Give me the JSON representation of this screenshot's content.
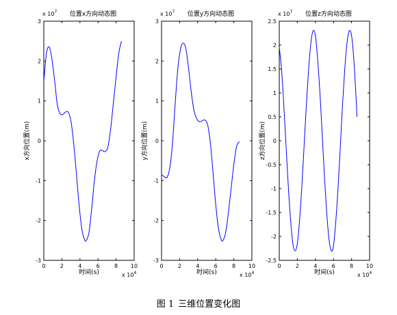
{
  "chart_data": [
    {
      "type": "line",
      "title": "位置x方向动态图",
      "xlabel": "时间(s)",
      "ylabel": "x方向位置(m)",
      "x_multiplier": "x 10",
      "x_multiplier_exp": "4",
      "y_multiplier": "x 10",
      "y_multiplier_exp": "7",
      "xlim": [
        0,
        10
      ],
      "ylim": [
        -3,
        3
      ],
      "xticks": [
        "0",
        "2",
        "4",
        "6",
        "8",
        "10"
      ],
      "yticks": [
        "3",
        "2",
        "1",
        "0",
        "-1",
        "-2",
        "-3"
      ],
      "grid": false,
      "line_color": "#0000ff",
      "series": [
        {
          "x": [
            0,
            0.3,
            0.6,
            0.9,
            1.2,
            1.5,
            1.8,
            2.1,
            2.4,
            2.7,
            3.0,
            3.3,
            3.6,
            3.9,
            4.2,
            4.5,
            4.7,
            5.0,
            5.3,
            5.6,
            5.9,
            6.2,
            6.5,
            6.8,
            7.1,
            7.4,
            7.7,
            8.0,
            8.3,
            8.6
          ],
          "y": [
            1.5,
            2.2,
            2.35,
            2.05,
            1.5,
            0.9,
            0.68,
            0.66,
            0.72,
            0.72,
            0.5,
            -0.05,
            -0.8,
            -1.6,
            -2.2,
            -2.48,
            -2.5,
            -2.3,
            -1.7,
            -1.0,
            -0.5,
            -0.25,
            -0.25,
            -0.27,
            -0.15,
            0.3,
            0.95,
            1.6,
            2.2,
            2.5
          ]
        }
      ]
    },
    {
      "type": "line",
      "title": "位置y方向动态图",
      "xlabel": "时间(s)",
      "ylabel": "y方向位置(m)",
      "x_multiplier": "x 10",
      "x_multiplier_exp": "4",
      "y_multiplier": "x 10",
      "y_multiplier_exp": "7",
      "xlim": [
        0,
        10
      ],
      "ylim": [
        -3,
        3
      ],
      "xticks": [
        "0",
        "2",
        "4",
        "6",
        "8",
        "10"
      ],
      "yticks": [
        "3",
        "2",
        "1",
        "0",
        "-1",
        "-2",
        "-3"
      ],
      "grid": false,
      "line_color": "#0000ff",
      "series": [
        {
          "x": [
            0,
            0.3,
            0.6,
            0.9,
            1.2,
            1.5,
            1.8,
            2.1,
            2.4,
            2.7,
            3.0,
            3.3,
            3.6,
            3.9,
            4.2,
            4.5,
            4.8,
            5.1,
            5.4,
            5.7,
            6.0,
            6.3,
            6.6,
            6.8,
            7.1,
            7.4,
            7.7,
            8.0,
            8.3,
            8.6
          ],
          "y": [
            -0.85,
            -0.9,
            -0.92,
            -0.7,
            -0.1,
            0.9,
            1.8,
            2.3,
            2.45,
            2.3,
            1.8,
            1.2,
            0.75,
            0.55,
            0.48,
            0.5,
            0.52,
            0.4,
            -0.05,
            -0.8,
            -1.6,
            -2.2,
            -2.48,
            -2.5,
            -2.3,
            -1.8,
            -1.2,
            -0.6,
            -0.15,
            -0.02
          ]
        }
      ]
    },
    {
      "type": "line",
      "title": "位置z方向动态图",
      "xlabel": "时间(s)",
      "ylabel": "z方向位置(m)",
      "x_multiplier": "x 10",
      "x_multiplier_exp": "4",
      "y_multiplier": "x 10",
      "y_multiplier_exp": "7",
      "xlim": [
        0,
        10
      ],
      "ylim": [
        -2.5,
        2.5
      ],
      "xticks": [
        "0",
        "2",
        "4",
        "6",
        "8",
        "10"
      ],
      "yticks": [
        "2.5",
        "2",
        "1.5",
        "1",
        "0.5",
        "0",
        "-0.5",
        "-1",
        "-1.5",
        "-2",
        "-2.5"
      ],
      "grid": false,
      "line_color": "#0000ff",
      "series": [
        {
          "x": [
            0,
            0.25,
            0.5,
            0.75,
            1.0,
            1.25,
            1.5,
            1.75,
            2.0,
            2.25,
            2.5,
            2.75,
            3.0,
            3.25,
            3.5,
            3.75,
            4.0,
            4.25,
            4.5,
            4.75,
            5.0,
            5.25,
            5.5,
            5.75,
            6.0,
            6.25,
            6.5,
            6.75,
            7.0,
            7.25,
            7.5,
            7.75,
            8.0,
            8.25,
            8.5,
            8.6
          ],
          "y": [
            1.95,
            1.5,
            0.75,
            -0.1,
            -0.95,
            -1.65,
            -2.15,
            -2.3,
            -2.15,
            -1.65,
            -0.95,
            -0.1,
            0.75,
            1.5,
            2.05,
            2.3,
            2.2,
            1.7,
            1.0,
            0.15,
            -0.75,
            -1.5,
            -2.05,
            -2.3,
            -2.2,
            -1.7,
            -1.0,
            -0.15,
            0.75,
            1.5,
            2.05,
            2.3,
            2.2,
            1.7,
            0.9,
            0.5
          ]
        }
      ]
    }
  ],
  "caption": {
    "prefix": "图 1",
    "text": "三维位置变化图"
  }
}
